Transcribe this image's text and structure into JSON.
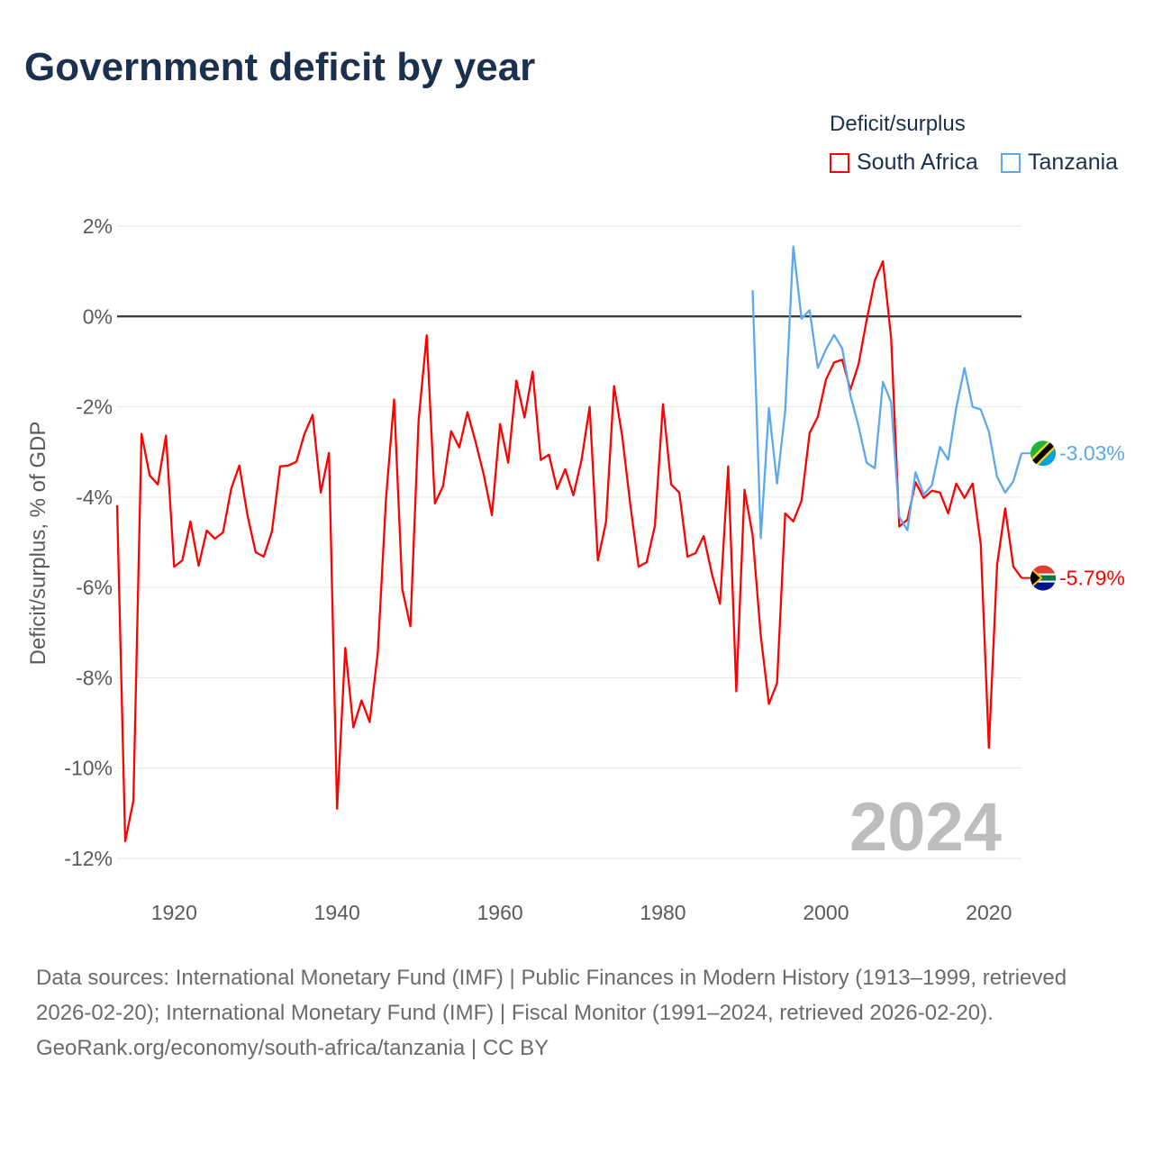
{
  "title": "Government deficit by year",
  "legend": {
    "title": "Deficit/surplus",
    "items": [
      {
        "label": "South Africa",
        "color": "#ff0000"
      },
      {
        "label": "Tanzania",
        "color": "#5ba8ef"
      }
    ]
  },
  "chart_data": {
    "type": "line",
    "title": "Government deficit by year",
    "xlabel": "",
    "ylabel": "Deficit/surplus, % of GDP",
    "xlim": [
      1913,
      2024
    ],
    "ylim": [
      -12,
      2
    ],
    "yticks": [
      2,
      0,
      -2,
      -4,
      -6,
      -8,
      -10,
      -12
    ],
    "ytick_labels": [
      "2%",
      "0%",
      "-2%",
      "-4%",
      "-6%",
      "-8%",
      "-10%",
      "-12%"
    ],
    "xticks": [
      1920,
      1940,
      1960,
      1980,
      2000,
      2020
    ],
    "xtick_labels": [
      "1920",
      "1940",
      "1960",
      "1980",
      "2000",
      "2020"
    ],
    "grid": true,
    "legend_position": "top-right",
    "year_overlay": "2024",
    "series": [
      {
        "name": "South Africa",
        "color": "#ff0000",
        "end_label": "-5.79%",
        "flag": "south-africa",
        "start_year": 1913,
        "values": [
          -4.18,
          -11.62,
          -10.72,
          -2.6,
          -3.52,
          -3.72,
          -2.64,
          -5.54,
          -5.4,
          -4.54,
          -5.52,
          -4.74,
          -4.92,
          -4.78,
          -3.82,
          -3.3,
          -4.4,
          -5.22,
          -5.32,
          -4.76,
          -3.32,
          -3.3,
          -3.22,
          -2.6,
          -2.18,
          -3.9,
          -3.02,
          -10.9,
          -7.34,
          -9.1,
          -8.5,
          -8.98,
          -7.44,
          -4.04,
          -1.84,
          -6.04,
          -6.86,
          -2.3,
          -0.42,
          -4.14,
          -3.76,
          -2.54,
          -2.9,
          -2.12,
          -2.78,
          -3.5,
          -4.4,
          -2.38,
          -3.24,
          -1.42,
          -2.24,
          -1.22,
          -3.18,
          -3.06,
          -3.82,
          -3.38,
          -3.96,
          -3.18,
          -2.0,
          -5.4,
          -4.56,
          -1.54,
          -2.66,
          -4.18,
          -5.54,
          -5.44,
          -4.64,
          -1.94,
          -3.72,
          -3.9,
          -5.32,
          -5.24,
          -4.86,
          -5.7,
          -6.36,
          -3.32,
          -8.3,
          -3.84,
          -4.84,
          -7.08,
          -8.58,
          -8.12,
          -4.36,
          -4.54,
          -4.08,
          -2.58,
          -2.22,
          -1.4,
          -1.02,
          -0.96,
          -1.62,
          -1.06,
          -0.08,
          0.8,
          1.22,
          -0.48,
          -4.65,
          -4.5,
          -3.67,
          -4.02,
          -3.86,
          -3.9,
          -4.36,
          -3.7,
          -4.02,
          -3.7,
          -5.05,
          -9.55,
          -5.5,
          -4.25,
          -5.54,
          -5.79
        ]
      },
      {
        "name": "Tanzania",
        "color": "#5ba8ef",
        "end_label": "-3.03%",
        "flag": "tanzania",
        "start_year": 1991,
        "values": [
          0.58,
          -4.91,
          -2.03,
          -3.7,
          -2.09,
          1.55,
          -0.05,
          0.14,
          -1.14,
          -0.73,
          -0.41,
          -0.71,
          -1.75,
          -2.43,
          -3.24,
          -3.36,
          -1.45,
          -1.9,
          -4.44,
          -4.73,
          -3.45,
          -3.95,
          -3.74,
          -2.89,
          -3.17,
          -2.02,
          -1.14,
          -2.0,
          -2.06,
          -2.55,
          -3.55,
          -3.9,
          -3.65,
          -3.03
        ]
      }
    ]
  },
  "footer": {
    "sources": "Data sources: International Monetary Fund (IMF) | Public Finances in Modern History (1913–1999, retrieved 2026-02-20); International Monetary Fund (IMF) | Fiscal Monitor (1991–2024, retrieved 2026-02-20).",
    "attribution": "GeoRank.org/economy/south-africa/tanzania | CC BY"
  }
}
